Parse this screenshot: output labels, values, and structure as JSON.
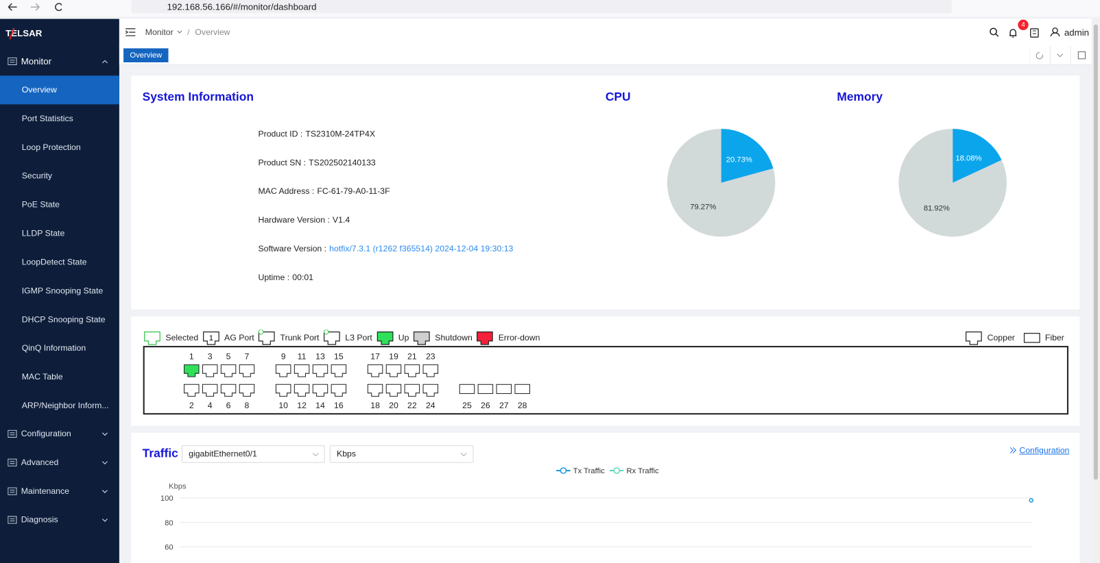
{
  "browser": {
    "url": "192.168.56.166/#/monitor/dashboard"
  },
  "sidebar": {
    "logo": "TELSAR",
    "menu": [
      {
        "label": "Monitor",
        "items": [
          "Overview",
          "Port Statistics",
          "Loop Protection",
          "Security",
          "PoE State",
          "LLDP State",
          "LoopDetect State",
          "IGMP Snooping State",
          "DHCP Snooping State",
          "QinQ Information",
          "MAC Table",
          "ARP/Neighbor Inform..."
        ]
      },
      {
        "label": "Configuration"
      },
      {
        "label": "Advanced"
      },
      {
        "label": "Maintenance"
      },
      {
        "label": "Diagnosis"
      }
    ]
  },
  "header": {
    "breadcrumb": [
      "Monitor",
      "Overview"
    ],
    "notification_count": "4",
    "user": "admin"
  },
  "tabs": [
    "Overview"
  ],
  "system_info": {
    "title": "System Information",
    "fields": [
      {
        "label": "Product ID :",
        "value": "TS2310M-24TP4X"
      },
      {
        "label": "Product SN :",
        "value": "TS202502140133"
      },
      {
        "label": "MAC Address :",
        "value": "FC-61-79-A0-11-3F"
      },
      {
        "label": "Hardware Version :",
        "value": "V1.4"
      },
      {
        "label": "Software Version :",
        "value": "hotfix/7.3.1 (r1262 f365514) 2024-12-04 19:30:13"
      },
      {
        "label": "Uptime :",
        "value": "00:01"
      }
    ]
  },
  "ports": {
    "legend": [
      {
        "label": "Selected"
      },
      {
        "label": "AG Port",
        "badge": "1"
      },
      {
        "label": "Trunk Port"
      },
      {
        "label": "L3 Port"
      },
      {
        "label": "Up"
      },
      {
        "label": "Shutdown"
      },
      {
        "label": "Error-down"
      }
    ],
    "media_legend": [
      "Copper",
      "Fiber"
    ],
    "top": [
      {
        "label": "1",
        "media": "Copper",
        "state": "Up"
      },
      {
        "label": "3",
        "media": "Copper"
      },
      {
        "label": "5",
        "media": "Copper"
      },
      {
        "label": "7",
        "media": "Copper"
      },
      {
        "label": "9",
        "media": "Copper"
      },
      {
        "label": "11",
        "media": "Copper"
      },
      {
        "label": "13",
        "media": "Copper"
      },
      {
        "label": "15",
        "media": "Copper"
      },
      {
        "label": "17",
        "media": "Copper"
      },
      {
        "label": "19",
        "media": "Copper"
      },
      {
        "label": "21",
        "media": "Copper"
      },
      {
        "label": "23",
        "media": "Copper"
      }
    ],
    "bottom": [
      {
        "label": "2",
        "media": "Copper"
      },
      {
        "label": "4",
        "media": "Copper"
      },
      {
        "label": "6",
        "media": "Copper"
      },
      {
        "label": "8",
        "media": "Copper"
      },
      {
        "label": "10",
        "media": "Copper"
      },
      {
        "label": "12",
        "media": "Copper"
      },
      {
        "label": "14",
        "media": "Copper"
      },
      {
        "label": "16",
        "media": "Copper"
      },
      {
        "label": "18",
        "media": "Copper"
      },
      {
        "label": "20",
        "media": "Copper"
      },
      {
        "label": "22",
        "media": "Copper"
      },
      {
        "label": "24",
        "media": "Copper"
      },
      {
        "label": "25",
        "media": "Fiber"
      },
      {
        "label": "26",
        "media": "Fiber"
      },
      {
        "label": "27",
        "media": "Fiber"
      },
      {
        "label": "28",
        "media": "Fiber"
      }
    ]
  },
  "traffic": {
    "interface": "gigabitEthernet0/1",
    "unit": "Kbps",
    "link": "Configuration"
  },
  "chart_data": [
    {
      "type": "pie",
      "title": "CPU",
      "values": [
        20.73,
        79.27
      ],
      "value_labels": [
        "20.73%",
        "79.27%"
      ],
      "colors": [
        "#0ba5ec",
        "#d2d9d9"
      ]
    },
    {
      "type": "pie",
      "title": "Memory",
      "values": [
        18.08,
        81.92
      ],
      "value_labels": [
        "18.08%",
        "81.92%"
      ],
      "colors": [
        "#0ba5ec",
        "#d2d9d9"
      ]
    },
    {
      "type": "line",
      "title": "Traffic",
      "y_label": "Kbps",
      "categories": [
        null
      ],
      "series": [
        {
          "name": "Tx Traffic",
          "color": "#1f9ae0",
          "values": [
            98
          ]
        },
        {
          "name": "Rx Traffic",
          "color": "#5fd9bd",
          "values": [
            null
          ]
        }
      ],
      "ylim": [
        0,
        100
      ],
      "yticks": [
        60,
        80,
        100
      ],
      "grid": true
    }
  ]
}
